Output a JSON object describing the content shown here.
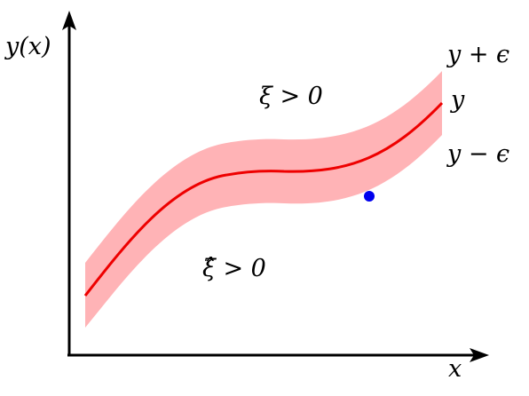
{
  "labels": {
    "y_axis": "y(x)",
    "x_axis": "x",
    "upper_bound": "y + ϵ",
    "curve": "y",
    "lower_bound": "y − ϵ",
    "region_above": "ξ > 0",
    "region_below": "ξ̂ > 0"
  },
  "colors": {
    "curve": "#ee0000",
    "band": "#ffb3b6",
    "point": "#0000ee",
    "axes": "#000000"
  },
  "icons": {
    "y_axis_head": "arrow-up-icon",
    "x_axis_head": "arrow-right-icon"
  }
}
